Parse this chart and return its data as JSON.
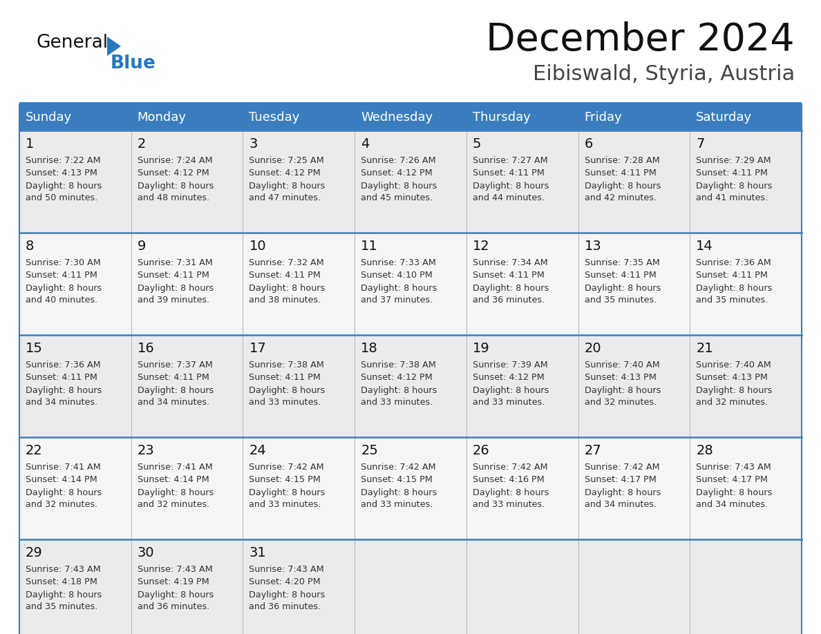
{
  "title": "December 2024",
  "subtitle": "Eibiswald, Styria, Austria",
  "days_of_week": [
    "Sunday",
    "Monday",
    "Tuesday",
    "Wednesday",
    "Thursday",
    "Friday",
    "Saturday"
  ],
  "header_bg": "#3A7EBF",
  "header_text": "#FFFFFF",
  "row_bg": "#EEEEEE",
  "row_bg_alt": "#F8F8F8",
  "border_color": "#3A7EBF",
  "sep_color": "#AAAAAA",
  "text_color": "#333333",
  "day_num_color": "#111111",
  "logo_black": "#111111",
  "logo_blue": "#2878BE",
  "calendar_data": [
    [
      {
        "day": 1,
        "sunrise": "7:22 AM",
        "sunset": "4:13 PM",
        "daylight": "8 hours",
        "daylight2": "and 50 minutes."
      },
      {
        "day": 2,
        "sunrise": "7:24 AM",
        "sunset": "4:12 PM",
        "daylight": "8 hours",
        "daylight2": "and 48 minutes."
      },
      {
        "day": 3,
        "sunrise": "7:25 AM",
        "sunset": "4:12 PM",
        "daylight": "8 hours",
        "daylight2": "and 47 minutes."
      },
      {
        "day": 4,
        "sunrise": "7:26 AM",
        "sunset": "4:12 PM",
        "daylight": "8 hours",
        "daylight2": "and 45 minutes."
      },
      {
        "day": 5,
        "sunrise": "7:27 AM",
        "sunset": "4:11 PM",
        "daylight": "8 hours",
        "daylight2": "and 44 minutes."
      },
      {
        "day": 6,
        "sunrise": "7:28 AM",
        "sunset": "4:11 PM",
        "daylight": "8 hours",
        "daylight2": "and 42 minutes."
      },
      {
        "day": 7,
        "sunrise": "7:29 AM",
        "sunset": "4:11 PM",
        "daylight": "8 hours",
        "daylight2": "and 41 minutes."
      }
    ],
    [
      {
        "day": 8,
        "sunrise": "7:30 AM",
        "sunset": "4:11 PM",
        "daylight": "8 hours",
        "daylight2": "and 40 minutes."
      },
      {
        "day": 9,
        "sunrise": "7:31 AM",
        "sunset": "4:11 PM",
        "daylight": "8 hours",
        "daylight2": "and 39 minutes."
      },
      {
        "day": 10,
        "sunrise": "7:32 AM",
        "sunset": "4:11 PM",
        "daylight": "8 hours",
        "daylight2": "and 38 minutes."
      },
      {
        "day": 11,
        "sunrise": "7:33 AM",
        "sunset": "4:10 PM",
        "daylight": "8 hours",
        "daylight2": "and 37 minutes."
      },
      {
        "day": 12,
        "sunrise": "7:34 AM",
        "sunset": "4:11 PM",
        "daylight": "8 hours",
        "daylight2": "and 36 minutes."
      },
      {
        "day": 13,
        "sunrise": "7:35 AM",
        "sunset": "4:11 PM",
        "daylight": "8 hours",
        "daylight2": "and 35 minutes."
      },
      {
        "day": 14,
        "sunrise": "7:36 AM",
        "sunset": "4:11 PM",
        "daylight": "8 hours",
        "daylight2": "and 35 minutes."
      }
    ],
    [
      {
        "day": 15,
        "sunrise": "7:36 AM",
        "sunset": "4:11 PM",
        "daylight": "8 hours",
        "daylight2": "and 34 minutes."
      },
      {
        "day": 16,
        "sunrise": "7:37 AM",
        "sunset": "4:11 PM",
        "daylight": "8 hours",
        "daylight2": "and 34 minutes."
      },
      {
        "day": 17,
        "sunrise": "7:38 AM",
        "sunset": "4:11 PM",
        "daylight": "8 hours",
        "daylight2": "and 33 minutes."
      },
      {
        "day": 18,
        "sunrise": "7:38 AM",
        "sunset": "4:12 PM",
        "daylight": "8 hours",
        "daylight2": "and 33 minutes."
      },
      {
        "day": 19,
        "sunrise": "7:39 AM",
        "sunset": "4:12 PM",
        "daylight": "8 hours",
        "daylight2": "and 33 minutes."
      },
      {
        "day": 20,
        "sunrise": "7:40 AM",
        "sunset": "4:13 PM",
        "daylight": "8 hours",
        "daylight2": "and 32 minutes."
      },
      {
        "day": 21,
        "sunrise": "7:40 AM",
        "sunset": "4:13 PM",
        "daylight": "8 hours",
        "daylight2": "and 32 minutes."
      }
    ],
    [
      {
        "day": 22,
        "sunrise": "7:41 AM",
        "sunset": "4:14 PM",
        "daylight": "8 hours",
        "daylight2": "and 32 minutes."
      },
      {
        "day": 23,
        "sunrise": "7:41 AM",
        "sunset": "4:14 PM",
        "daylight": "8 hours",
        "daylight2": "and 32 minutes."
      },
      {
        "day": 24,
        "sunrise": "7:42 AM",
        "sunset": "4:15 PM",
        "daylight": "8 hours",
        "daylight2": "and 33 minutes."
      },
      {
        "day": 25,
        "sunrise": "7:42 AM",
        "sunset": "4:15 PM",
        "daylight": "8 hours",
        "daylight2": "and 33 minutes."
      },
      {
        "day": 26,
        "sunrise": "7:42 AM",
        "sunset": "4:16 PM",
        "daylight": "8 hours",
        "daylight2": "and 33 minutes."
      },
      {
        "day": 27,
        "sunrise": "7:42 AM",
        "sunset": "4:17 PM",
        "daylight": "8 hours",
        "daylight2": "and 34 minutes."
      },
      {
        "day": 28,
        "sunrise": "7:43 AM",
        "sunset": "4:17 PM",
        "daylight": "8 hours",
        "daylight2": "and 34 minutes."
      }
    ],
    [
      {
        "day": 29,
        "sunrise": "7:43 AM",
        "sunset": "4:18 PM",
        "daylight": "8 hours",
        "daylight2": "and 35 minutes."
      },
      {
        "day": 30,
        "sunrise": "7:43 AM",
        "sunset": "4:19 PM",
        "daylight": "8 hours",
        "daylight2": "and 36 minutes."
      },
      {
        "day": 31,
        "sunrise": "7:43 AM",
        "sunset": "4:20 PM",
        "daylight": "8 hours",
        "daylight2": "and 36 minutes."
      },
      null,
      null,
      null,
      null
    ]
  ]
}
